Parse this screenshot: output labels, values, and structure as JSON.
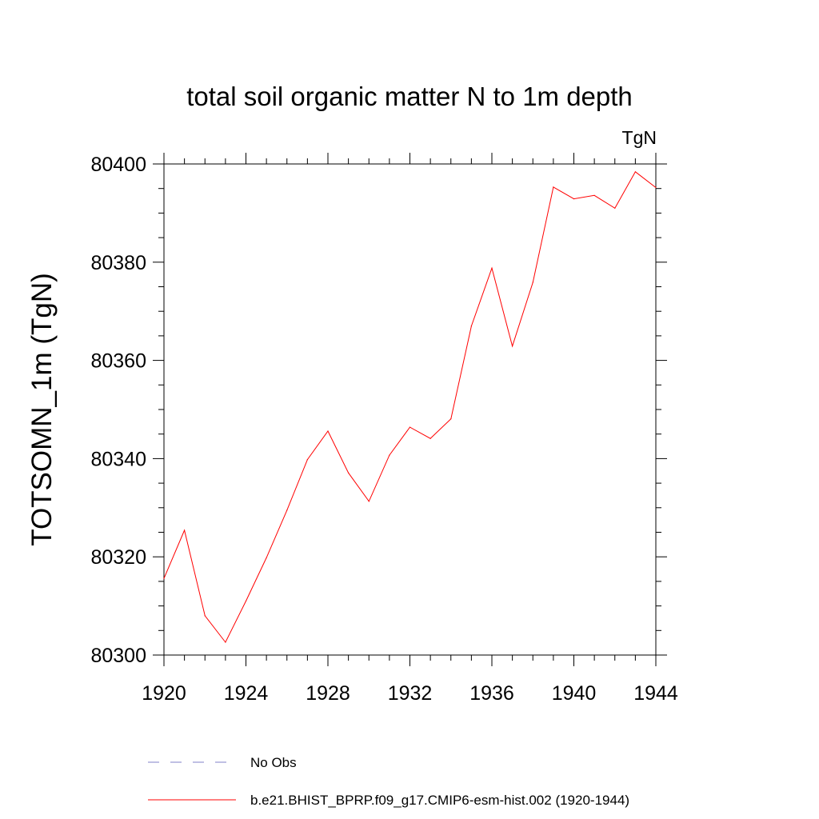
{
  "chart_data": {
    "type": "line",
    "title": "total soil organic matter N to 1m depth",
    "units_label": "TgN",
    "xlabel": "",
    "ylabel": "TOTSOMN_1m  (TgN)",
    "xlim": [
      1920,
      1944
    ],
    "ylim": [
      80300,
      80400
    ],
    "x_ticks": [
      1920,
      1924,
      1928,
      1932,
      1936,
      1940,
      1944
    ],
    "y_ticks": [
      80300,
      80320,
      80340,
      80360,
      80380,
      80400
    ],
    "grid": false,
    "legend_position": "bottom",
    "series": [
      {
        "name": "b.e21.BHIST_BPRP.f09_g17.CMIP6-esm-hist.002 (1920-1944)",
        "color": "#ff0000",
        "style": "solid",
        "x": [
          1920,
          1921,
          1922,
          1923,
          1924,
          1925,
          1926,
          1927,
          1928,
          1929,
          1930,
          1931,
          1932,
          1933,
          1934,
          1935,
          1936,
          1937,
          1938,
          1939,
          1940,
          1941,
          1942,
          1943,
          1944
        ],
        "values": [
          80315.6,
          80325.4,
          80308.0,
          80302.6,
          80311.0,
          80319.8,
          80329.5,
          80339.8,
          80345.6,
          80337.1,
          80331.3,
          80340.7,
          80346.4,
          80344.1,
          80348.1,
          80367.0,
          80378.8,
          80362.9,
          80375.9,
          80395.3,
          80392.9,
          80393.6,
          80391.0,
          80398.4,
          80395.2
        ]
      }
    ],
    "legend": [
      {
        "label": "No Obs",
        "color": "#8080c8",
        "style": "dashed"
      },
      {
        "label": "b.e21.BHIST_BPRP.f09_g17.CMIP6-esm-hist.002 (1920-1944)",
        "color": "#ff0000",
        "style": "solid"
      }
    ]
  }
}
